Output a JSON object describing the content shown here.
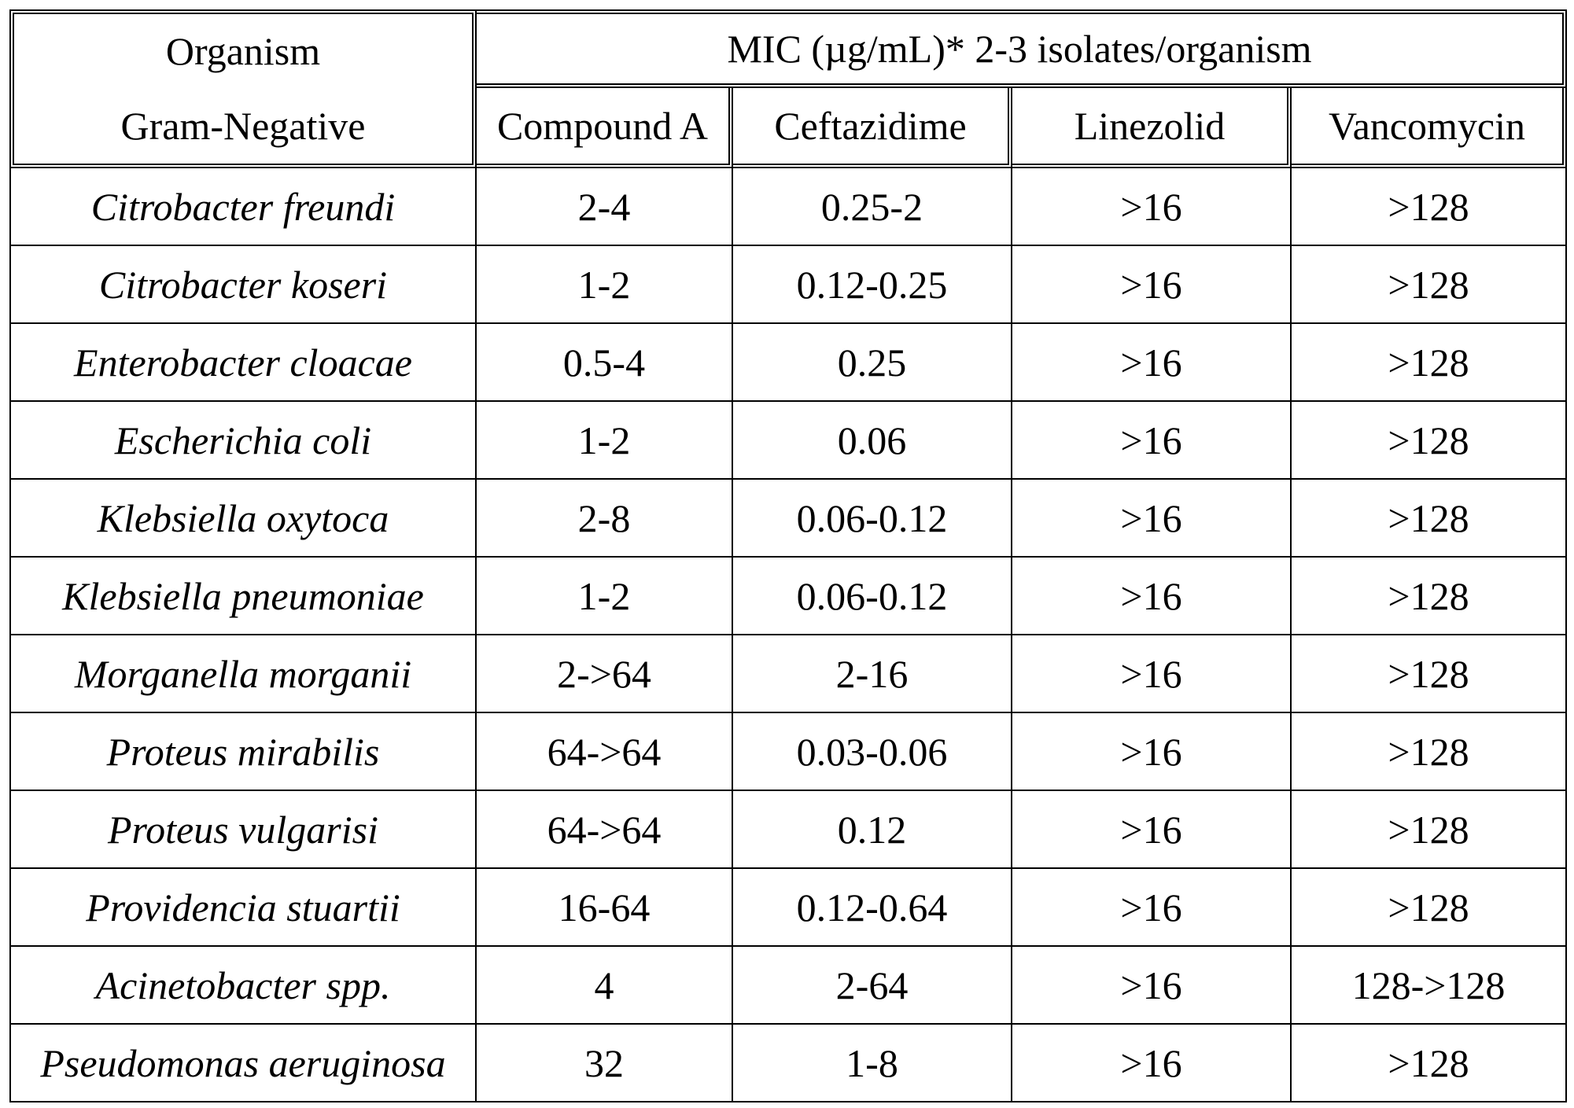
{
  "header": {
    "organism_line1": "Organism",
    "organism_line2": "Gram-Negative",
    "mic_title": "MIC (µg/mL)* 2-3 isolates/organism",
    "columns": [
      "Compound A",
      "Ceftazidime",
      "Linezolid",
      "Vancomycin"
    ]
  },
  "rows": [
    {
      "organism": "Citrobacter freundi",
      "values": [
        "2-4",
        "0.25-2",
        ">16",
        ">128"
      ]
    },
    {
      "organism": "Citrobacter koseri",
      "values": [
        "1-2",
        "0.12-0.25",
        ">16",
        ">128"
      ]
    },
    {
      "organism": "Enterobacter cloacae",
      "values": [
        "0.5-4",
        "0.25",
        ">16",
        ">128"
      ]
    },
    {
      "organism": "Escherichia coli",
      "values": [
        "1-2",
        "0.06",
        ">16",
        ">128"
      ]
    },
    {
      "organism": "Klebsiella oxytoca",
      "values": [
        "2-8",
        "0.06-0.12",
        ">16",
        ">128"
      ]
    },
    {
      "organism": "Klebsiella pneumoniae",
      "values": [
        "1-2",
        "0.06-0.12",
        ">16",
        ">128"
      ]
    },
    {
      "organism": "Morganella morganii",
      "values": [
        "2->64",
        "2-16",
        ">16",
        ">128"
      ]
    },
    {
      "organism": "Proteus mirabilis",
      "values": [
        "64->64",
        "0.03-0.06",
        ">16",
        ">128"
      ]
    },
    {
      "organism": "Proteus vulgarisi",
      "values": [
        "64->64",
        "0.12",
        ">16",
        ">128"
      ]
    },
    {
      "organism": "Providencia stuartii",
      "values": [
        "16-64",
        "0.12-0.64",
        ">16",
        ">128"
      ]
    },
    {
      "organism": "Acinetobacter spp.",
      "values": [
        "4",
        "2-64",
        ">16",
        "128->128"
      ]
    },
    {
      "organism": "Pseudomonas aeruginosa",
      "values": [
        "32",
        "1-8",
        ">16",
        ">128"
      ]
    }
  ]
}
